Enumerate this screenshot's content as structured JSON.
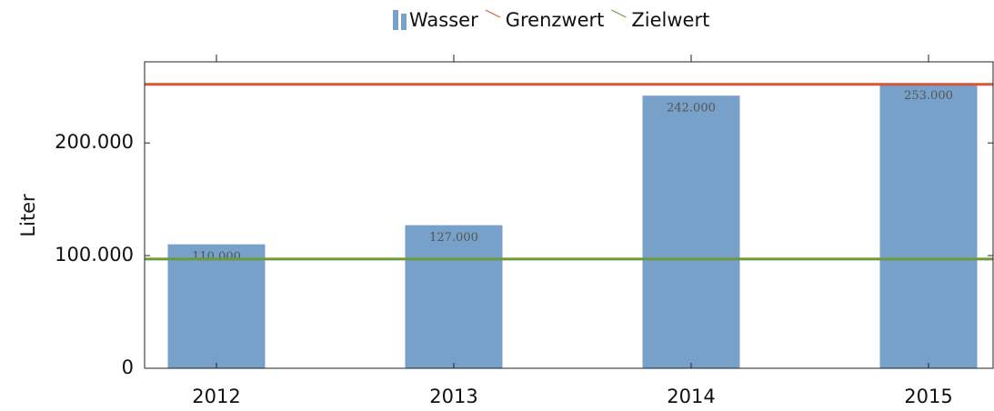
{
  "chart_data": {
    "type": "bar",
    "ylabel": "Liter",
    "categories": [
      "2012",
      "2013",
      "2014",
      "2015"
    ],
    "series": [
      {
        "name": "Wasser",
        "color": "#77a1c9",
        "values": [
          110000,
          127000,
          242000,
          253000
        ],
        "value_labels": [
          "110.000",
          "127.000",
          "242.000",
          "253.000"
        ]
      },
      {
        "name": "Grenzwert",
        "type": "hline",
        "color": "#d9553b",
        "value": 252000
      },
      {
        "name": "Zielwert",
        "type": "hline",
        "color": "#6b9a3c",
        "value": 97000
      }
    ],
    "ylim": [
      0,
      272000
    ],
    "yticks": [
      0,
      {
        "value": 100000,
        "label": "100.000"
      },
      {
        "value": 200000,
        "label": "200.000"
      }
    ],
    "grid": false
  }
}
